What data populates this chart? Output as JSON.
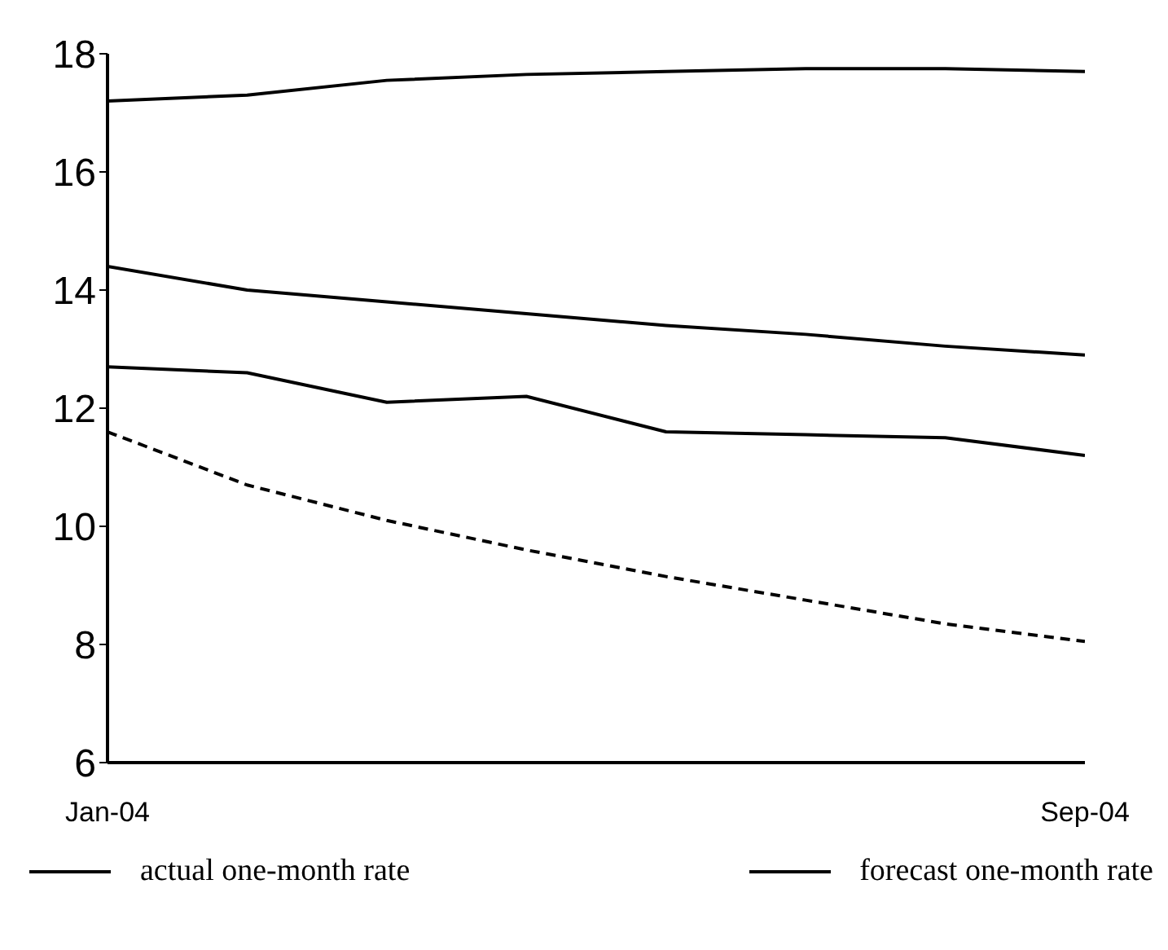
{
  "chart_data": {
    "type": "line",
    "categories": [
      "Jan-04",
      null,
      null,
      null,
      null,
      null,
      null,
      "Sep-04"
    ],
    "series": [
      {
        "color": "#000000",
        "values": [
          17.2,
          17.3,
          17.55,
          17.65,
          17.7,
          17.75,
          17.75,
          17.7
        ]
      },
      {
        "name": "forecast one-month rate",
        "color": "#000000",
        "values": [
          14.4,
          14.0,
          13.8,
          13.6,
          13.4,
          13.25,
          13.05,
          12.9
        ]
      },
      {
        "name": "actual one-month rate",
        "color": "#000000",
        "values": [
          12.7,
          12.6,
          12.1,
          12.2,
          11.6,
          11.55,
          11.5,
          11.2
        ]
      },
      {
        "color": "#000000",
        "line_style": "dashed",
        "values": [
          11.6,
          10.7,
          10.1,
          9.6,
          9.15,
          8.75,
          8.35,
          8.05
        ]
      }
    ],
    "ylim": [
      6,
      18
    ],
    "yticks": [
      6,
      8,
      10,
      12,
      14,
      16,
      18
    ],
    "grid": false,
    "legend": "bottom",
    "marker": "none",
    "line_style": "solid"
  }
}
